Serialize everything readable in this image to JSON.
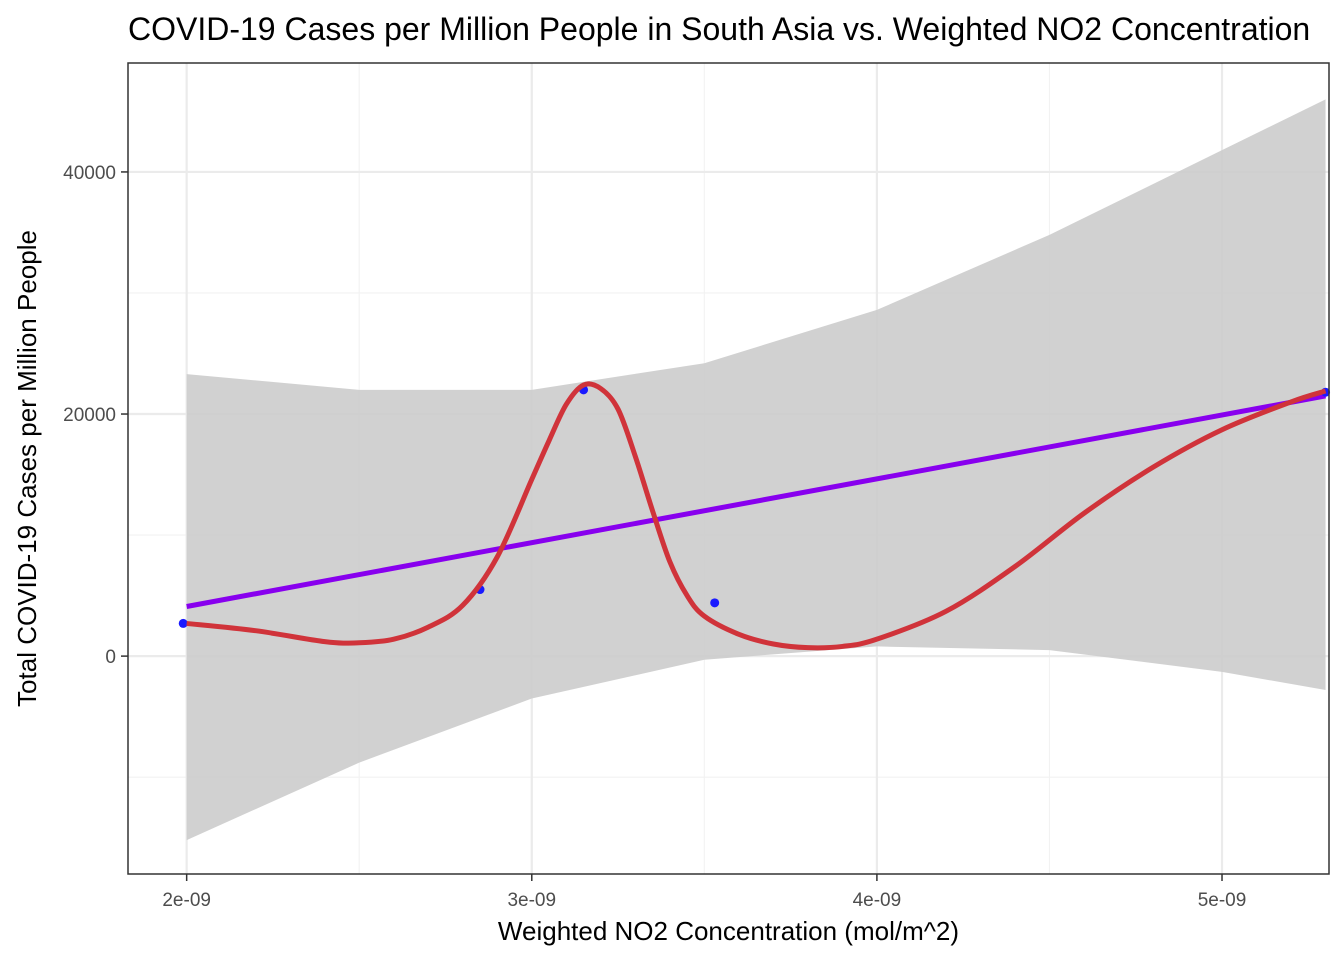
{
  "chart_data": {
    "type": "scatter",
    "title": "COVID-19 Cases per Million People in South Asia vs. Weighted NO2 Concentration",
    "xlabel": "Weighted NO2 Concentration (mol/m^2)",
    "ylabel": "Total COVID-19 Cases per Million People",
    "xlim": [
      1.83e-09,
      5.31e-09
    ],
    "ylim": [
      -18000,
      49000
    ],
    "x_ticks": [
      2e-09,
      3e-09,
      4e-09,
      5e-09
    ],
    "x_tick_labels": [
      "2e-09",
      "3e-09",
      "4e-09",
      "5e-09"
    ],
    "y_ticks": [
      0,
      20000,
      40000
    ],
    "y_tick_labels": [
      "0",
      "20000",
      "40000"
    ],
    "x_minor": [
      2.5e-09,
      3.5e-09,
      4.5e-09
    ],
    "y_minor": [
      -10000,
      10000,
      30000
    ],
    "grid": true,
    "points": {
      "color": "#1a1aff",
      "x": [
        1.99e-09,
        2.85e-09,
        3.15e-09,
        3.53e-09,
        5.3e-09
      ],
      "y": [
        2700,
        5500,
        22000,
        4400,
        21800
      ]
    },
    "confidence_band": {
      "color": "#cccccc",
      "x": [
        2e-09,
        2.5e-09,
        3e-09,
        3.5e-09,
        4e-09,
        4.5e-09,
        5e-09,
        5.3e-09
      ],
      "upper": [
        23300,
        22000,
        22000,
        24200,
        28600,
        34800,
        41800,
        46000
      ],
      "lower": [
        -15200,
        -8800,
        -3500,
        -300,
        800,
        500,
        -1300,
        -2800
      ]
    },
    "linear_fit": {
      "color": "#8800ee",
      "x": [
        2e-09,
        5.3e-09
      ],
      "y": [
        4100,
        21500
      ]
    },
    "smooth_fit": {
      "color": "#d0333a",
      "x": [
        2e-09,
        2.2e-09,
        2.4e-09,
        2.5e-09,
        2.6e-09,
        2.7e-09,
        2.8e-09,
        2.9e-09,
        3e-09,
        3.05e-09,
        3.1e-09,
        3.15e-09,
        3.2e-09,
        3.25e-09,
        3.3e-09,
        3.35e-09,
        3.4e-09,
        3.45e-09,
        3.5e-09,
        3.6e-09,
        3.7e-09,
        3.8e-09,
        3.9e-09,
        4e-09,
        4.2e-09,
        4.4e-09,
        4.6e-09,
        4.8e-09,
        5e-09,
        5.2e-09,
        5.3e-09
      ],
      "y": [
        2700,
        2100,
        1200,
        1100,
        1400,
        2400,
        4200,
        8200,
        14600,
        17800,
        20800,
        22400,
        22100,
        20400,
        16500,
        12000,
        7800,
        5000,
        3300,
        1800,
        1000,
        700,
        800,
        1400,
        3700,
        7400,
        11800,
        15600,
        18700,
        21000,
        21900
      ]
    }
  }
}
